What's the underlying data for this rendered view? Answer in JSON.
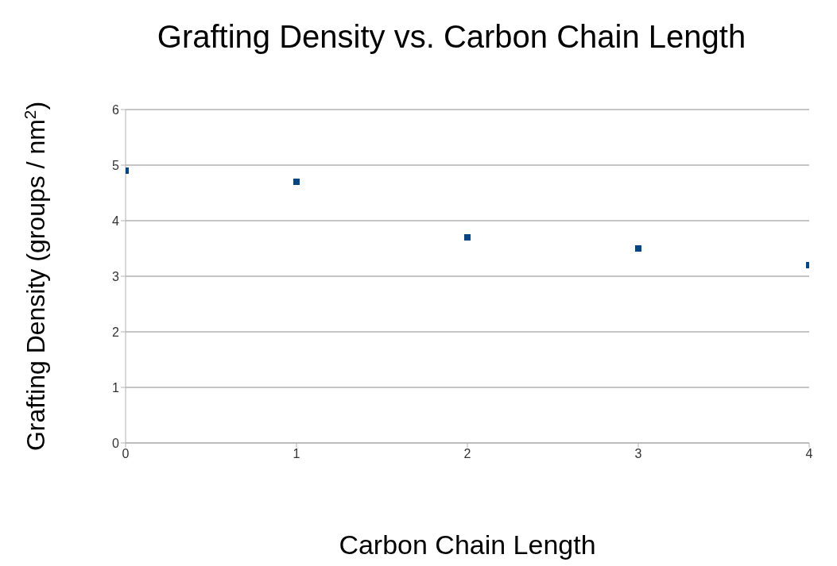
{
  "chart_data": {
    "type": "scatter",
    "title": "Grafting Density vs. Carbon Chain Length",
    "xlabel": "Carbon Chain Length",
    "ylabel": "Grafting Density (groups / nm$^{2}$)",
    "x": [
      0,
      1,
      2,
      3,
      4
    ],
    "series": [
      {
        "color": "#004586",
        "values": [
          4.9,
          4.7,
          3.7,
          3.5,
          3.2
        ]
      }
    ],
    "xlim": [
      0,
      4
    ],
    "xticks": [
      0,
      1,
      2,
      3,
      4
    ],
    "ylim": [
      0,
      6
    ],
    "yticks": [
      0,
      1,
      2,
      3,
      4,
      5,
      6
    ],
    "grid": "y",
    "legend": false,
    "marker": "square"
  }
}
